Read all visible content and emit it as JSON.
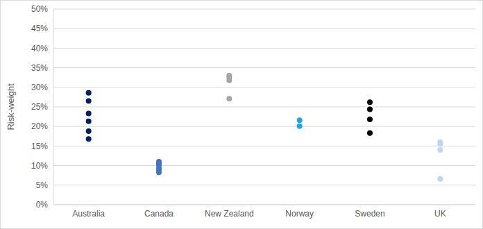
{
  "chart_data": {
    "type": "scatter",
    "y_label": "Risk-weight",
    "categories": [
      "Australia",
      "Canada",
      "New Zealand",
      "Norway",
      "Sweden",
      "UK"
    ],
    "values": [
      [
        28.6,
        26.5,
        23.3,
        21.3,
        18.8,
        16.8
      ],
      [
        11.0,
        10.6,
        10.2,
        9.4,
        8.9,
        8.3
      ],
      [
        33.0,
        32.5,
        31.8,
        27.1
      ],
      [
        21.6,
        20.1
      ],
      [
        26.2,
        24.4,
        21.8,
        18.3
      ],
      [
        16.0,
        15.5,
        14.0,
        6.6
      ]
    ],
    "colors": [
      "#002060",
      "#4472C4",
      "#A5A5A5",
      "#1FA8E0",
      "#000000",
      "#BDD7EE"
    ],
    "ylim": [
      0,
      50
    ],
    "yticks": [
      {
        "value": 0,
        "label": "0%"
      },
      {
        "value": 5,
        "label": "5%"
      },
      {
        "value": 10,
        "label": "10%"
      },
      {
        "value": 15,
        "label": "15%"
      },
      {
        "value": 20,
        "label": "20%"
      },
      {
        "value": 25,
        "label": "25%"
      },
      {
        "value": 30,
        "label": "30%"
      },
      {
        "value": 35,
        "label": "35%"
      },
      {
        "value": 40,
        "label": "40%"
      },
      {
        "value": 45,
        "label": "45%"
      },
      {
        "value": 50,
        "label": "50%"
      }
    ],
    "grid": true
  }
}
